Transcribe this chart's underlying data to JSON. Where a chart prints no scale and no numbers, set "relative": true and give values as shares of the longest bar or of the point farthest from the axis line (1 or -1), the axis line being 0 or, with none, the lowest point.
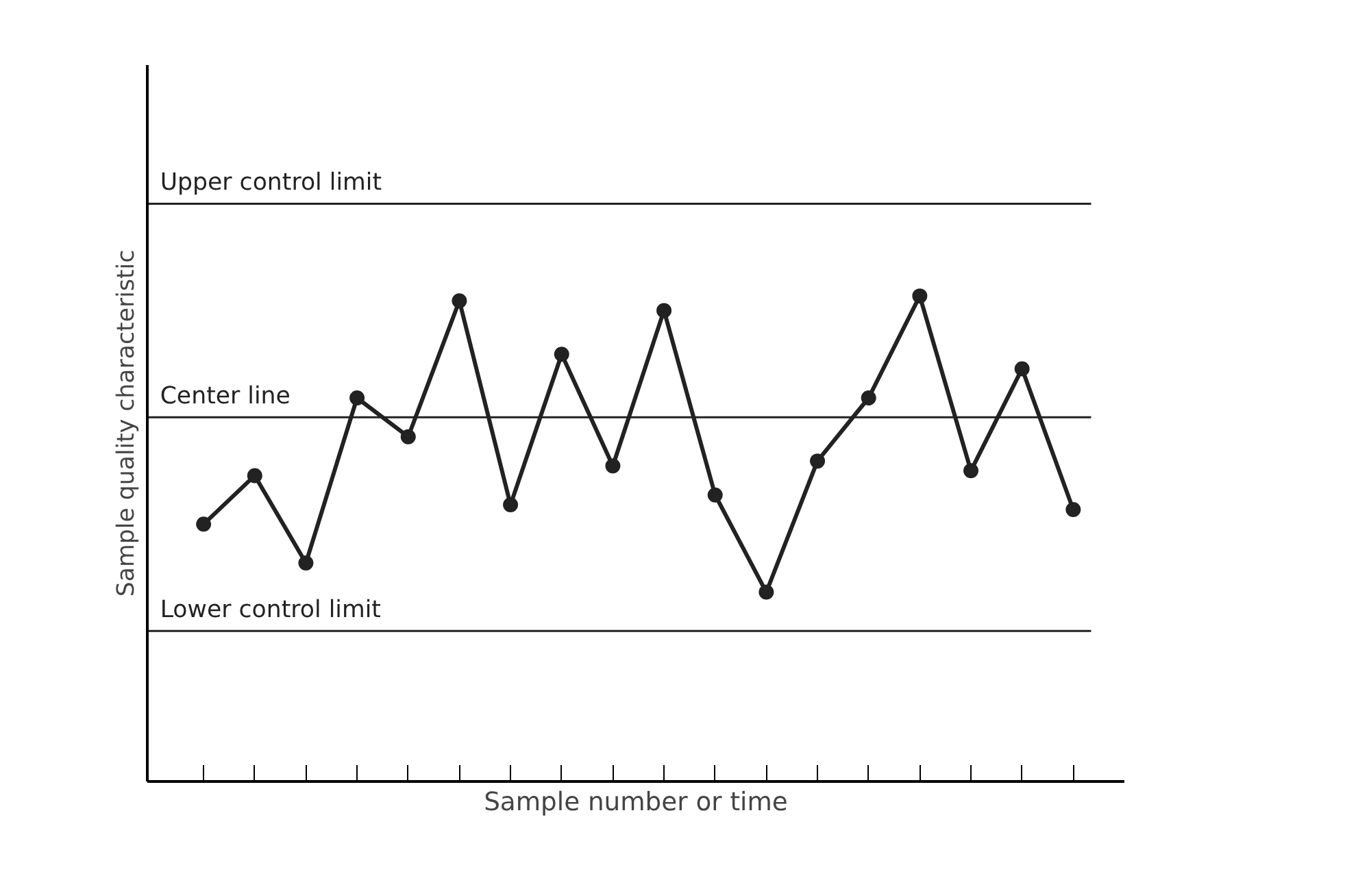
{
  "chart_data": {
    "type": "line",
    "relative": true,
    "xlabel": "Sample number or time",
    "ylabel": "Sample quality characteristic",
    "categories": [
      null,
      null,
      null,
      null,
      null,
      null,
      null,
      null,
      null,
      null,
      null,
      null,
      null,
      null,
      null,
      null,
      null,
      null
    ],
    "series": [
      {
        "color": "#222222",
        "values": [
          0.53,
          0.63,
          0.45,
          0.79,
          0.71,
          0.99,
          0.57,
          0.88,
          0.65,
          0.97,
          0.59,
          0.39,
          0.66,
          0.79,
          1,
          0.64,
          0.85,
          0.56
        ]
      }
    ],
    "ref_lines": [
      {
        "axis": "y",
        "value": 1.19,
        "label": "Upper control limit"
      },
      {
        "axis": "y",
        "value": 0.75,
        "label": "Center line"
      },
      {
        "axis": "y",
        "value": 0.31,
        "label": "Lower control limit"
      }
    ],
    "marker": "circle",
    "line_style": "solid",
    "grid": false
  }
}
